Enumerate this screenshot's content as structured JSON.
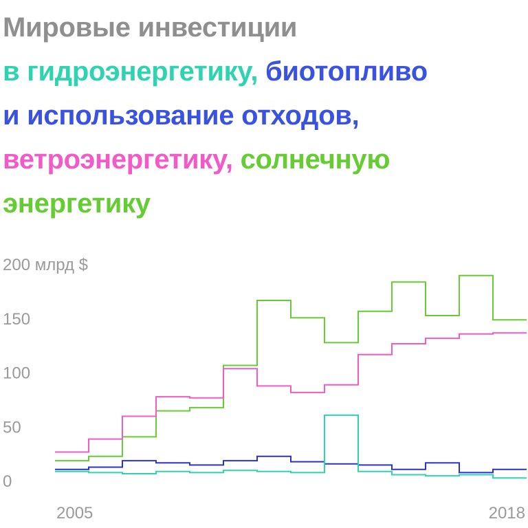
{
  "title": {
    "part1": "Мировые инвестиции",
    "part2": "в гидроэнергетику,",
    "part3": "биотопливо",
    "part4": "и использование отходов,",
    "part5": "ветроэнергетику,",
    "part6": "солнечную",
    "part7": "энергетику"
  },
  "chart_data": {
    "type": "line",
    "step": true,
    "x": [
      2004,
      2005,
      2006,
      2007,
      2008,
      2009,
      2010,
      2011,
      2012,
      2013,
      2014,
      2015,
      2016,
      2017
    ],
    "x_tick_labels": [
      "2005",
      "2018"
    ],
    "y_tick_labels": [
      "0",
      "50",
      "100",
      "150",
      "200 млрд $"
    ],
    "y_ticks": [
      0,
      50,
      100,
      150,
      200
    ],
    "ylim": [
      0,
      200
    ],
    "grid": false,
    "series": [
      {
        "key": "solar",
        "color": "#66cc33",
        "values": [
          19,
          23,
          41,
          65,
          68,
          107,
          167,
          151,
          128,
          157,
          184,
          153,
          190,
          149
        ]
      },
      {
        "key": "wind",
        "color": "#f25ac8",
        "values": [
          27,
          39,
          60,
          78,
          77,
          104,
          88,
          82,
          89,
          117,
          127,
          132,
          136,
          137
        ]
      },
      {
        "key": "biofuels",
        "color": "#2a33c9",
        "values": [
          11,
          13,
          19,
          17,
          15,
          19,
          23,
          18,
          16,
          15,
          11,
          17,
          8,
          11
        ]
      },
      {
        "key": "hydro",
        "color": "#2ed4b0",
        "values": [
          9,
          8,
          7,
          9,
          8,
          10,
          9,
          8,
          61,
          9,
          6,
          5,
          6,
          3
        ]
      }
    ]
  }
}
